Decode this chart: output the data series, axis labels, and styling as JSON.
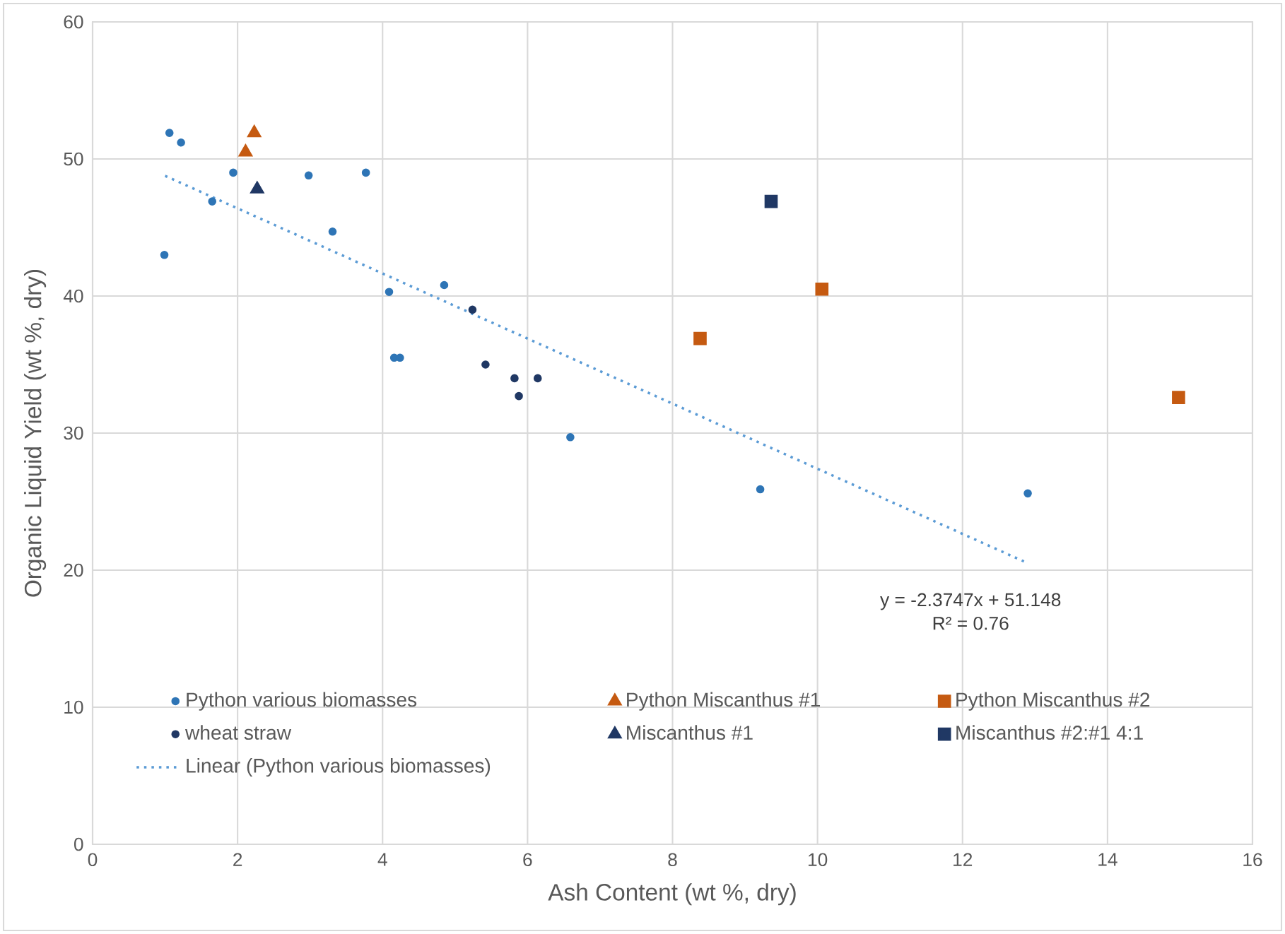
{
  "chart_data": {
    "type": "scatter",
    "xlabel": "Ash Content (wt %, dry)",
    "ylabel": "Organic Liquid Yield (wt %, dry)",
    "xlim": [
      0,
      16
    ],
    "xticks": [
      0,
      2,
      4,
      6,
      8,
      10,
      12,
      14,
      16
    ],
    "ylim": [
      0,
      60
    ],
    "yticks": [
      0,
      10,
      20,
      30,
      40,
      50,
      60
    ],
    "grid": true,
    "legend": "bottom",
    "series": [
      {
        "name": "Python various biomasses",
        "color": "#2e75b6",
        "marker": "circle",
        "x": [
          0.99,
          1.06,
          1.22,
          1.65,
          1.94,
          2.98,
          3.31,
          3.77,
          4.09,
          4.16,
          4.24,
          4.85,
          6.59,
          9.21,
          12.9
        ],
        "values": [
          43.0,
          51.9,
          51.2,
          46.9,
          49.0,
          48.8,
          44.7,
          49.0,
          40.3,
          35.5,
          35.5,
          40.8,
          29.7,
          25.9,
          25.6
        ]
      },
      {
        "name": "Python Miscanthus #1",
        "color": "#c55a11",
        "marker": "triangle",
        "x": [
          2.11,
          2.23
        ],
        "values": [
          50.5,
          51.9
        ]
      },
      {
        "name": "Python Miscanthus #2",
        "color": "#c55a11",
        "marker": "square",
        "x": [
          8.38,
          10.06,
          14.98
        ],
        "values": [
          36.9,
          40.5,
          32.6
        ]
      },
      {
        "name": "wheat straw",
        "color": "#203864",
        "marker": "circle",
        "x": [
          5.24,
          5.42,
          5.82,
          5.88,
          6.14
        ],
        "values": [
          39.0,
          35.0,
          34.0,
          32.7,
          34.0
        ]
      },
      {
        "name": "Miscanthus #1",
        "color": "#203864",
        "marker": "triangle",
        "x": [
          2.27
        ],
        "values": [
          47.8
        ]
      },
      {
        "name": "Miscanthus #2:#1 4:1",
        "color": "#203864",
        "marker": "square",
        "x": [
          9.36
        ],
        "values": [
          46.9
        ]
      },
      {
        "name": "Linear (Python various biomasses)",
        "type": "line",
        "color": "#5b9bd5",
        "line_style": "dotted",
        "marker": "none",
        "x": [
          1.0,
          12.9
        ],
        "values": [
          48.77,
          20.51
        ]
      }
    ],
    "annotations": [
      "y = -2.3747x + 51.148",
      "R² = 0.76"
    ]
  }
}
